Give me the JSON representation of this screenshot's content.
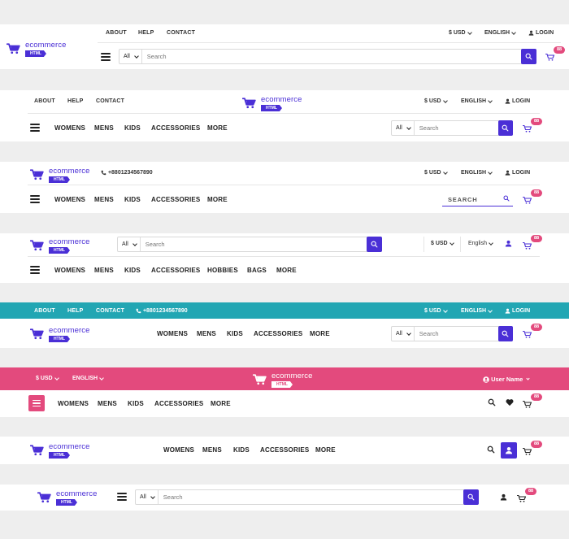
{
  "colors": {
    "accent": "#4a2fd6",
    "badge": "#e34a7d",
    "teal": "#22a6b3",
    "pink": "#e34a7d"
  },
  "logo": {
    "text": "ecommerce",
    "tag": "HTML"
  },
  "top_links": {
    "about": "ABOUT",
    "help": "HELP",
    "contact": "CONTACT"
  },
  "phone": "+8801234567890",
  "currency": "$ USD",
  "language": "ENGLISH",
  "language_alt": "English",
  "login": "LOGIN",
  "user_name": "User Name",
  "search": {
    "category": "All",
    "placeholder": "Search"
  },
  "search_caps": "SEARCH",
  "cart_count": "88",
  "nav": {
    "womens": "WOMENS",
    "mens": "MENS",
    "kids": "KIDS",
    "accessories": "ACCESSORIES",
    "hobbies": "HOBBIES",
    "bags": "BAGS",
    "more": "MORE"
  },
  "icons": [
    "cart-icon",
    "search-icon",
    "user-icon",
    "phone-icon",
    "heart-icon",
    "menu-icon",
    "chevron-down-icon"
  ]
}
